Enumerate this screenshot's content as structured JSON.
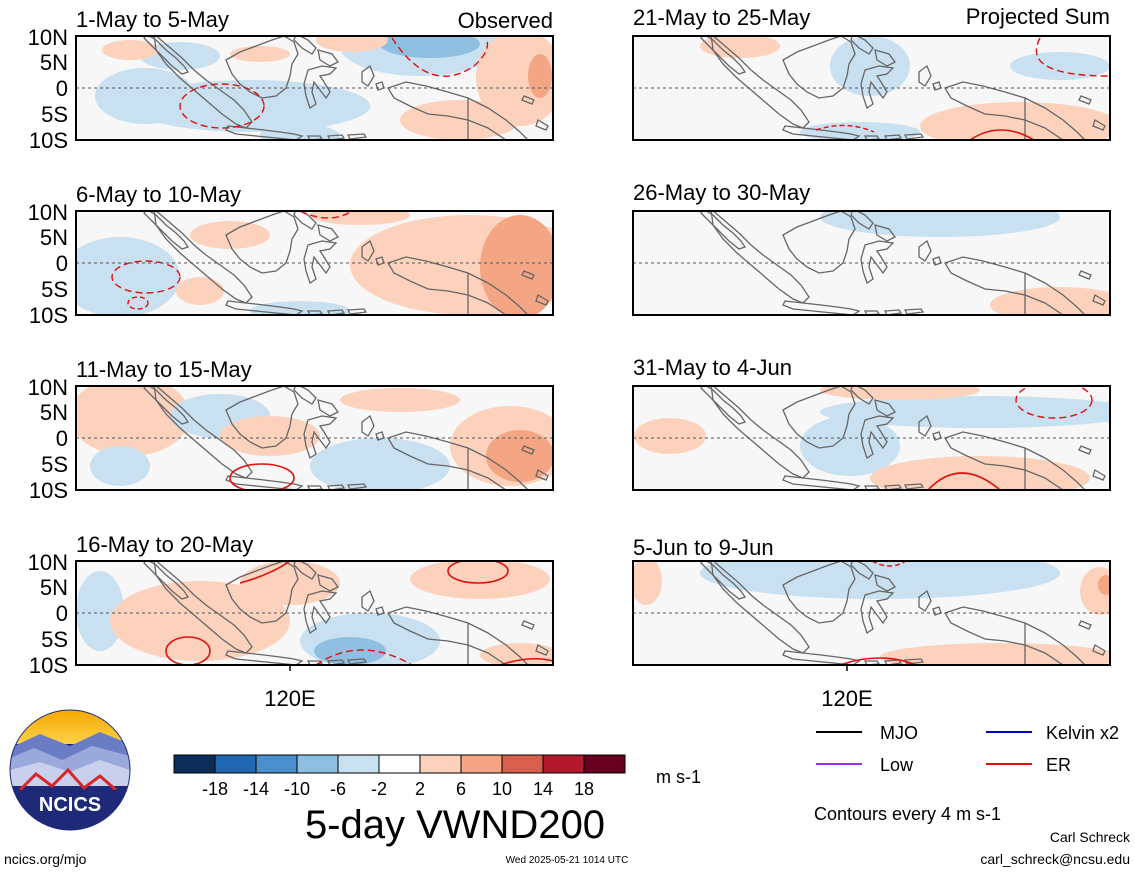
{
  "header": {
    "observed_label": "Observed",
    "projected_label": "Projected Sum"
  },
  "axes": {
    "lat_ticks": [
      "10N",
      "5N",
      "0",
      "5S",
      "10S"
    ],
    "lon_tick": "120E"
  },
  "panels": [
    {
      "title": "1-May to 5-May",
      "column": "observed"
    },
    {
      "title": "6-May to 10-May",
      "column": "observed"
    },
    {
      "title": "11-May to 15-May",
      "column": "observed"
    },
    {
      "title": "16-May to 20-May",
      "column": "observed"
    },
    {
      "title": "21-May to 25-May",
      "column": "projected"
    },
    {
      "title": "26-May to 30-May",
      "column": "projected"
    },
    {
      "title": "31-May to 4-Jun",
      "column": "projected"
    },
    {
      "title": "5-Jun to 9-Jun",
      "column": "projected"
    }
  ],
  "colorbar": {
    "labels": [
      "-18",
      "-14",
      "-10",
      "-6",
      "-2",
      "2",
      "6",
      "10",
      "14",
      "18"
    ],
    "colors": [
      "#0c2c58",
      "#2066b0",
      "#4a8ecb",
      "#8fbfe0",
      "#c8e0f0",
      "#ffffff",
      "#fcd2bc",
      "#f4a584",
      "#d6604d",
      "#b2182b",
      "#67001f"
    ],
    "unit": "m s-1"
  },
  "legend": {
    "items": [
      {
        "label": "MJO",
        "color": "#000000"
      },
      {
        "label": "Kelvin x2",
        "color": "#0000cc"
      },
      {
        "label": "Low",
        "color": "#9933ee"
      },
      {
        "label": "ER",
        "color": "#e01010"
      }
    ],
    "contour_note": "Contours every 4 m s-1"
  },
  "footer": {
    "title": "5-day VWND200",
    "site": "ncics.org/mjo",
    "timestamp": "Wed 2025-05-21 1014 UTC",
    "author": "Carl Schreck",
    "email": "carl_schreck@ncsu.edu",
    "logo_text": "NCICS"
  },
  "chart_data": {
    "type": "heatmap",
    "variable": "5-day VWND200",
    "unit": "m s-1",
    "lat_range": [
      -10,
      10
    ],
    "contour_interval": 4,
    "color_levels": [
      -18,
      -14,
      -10,
      -6,
      -2,
      2,
      6,
      10,
      14,
      18
    ],
    "panels": [
      "1-May to 5-May",
      "6-May to 10-May",
      "11-May to 15-May",
      "16-May to 20-May",
      "21-May to 25-May",
      "26-May to 30-May",
      "31-May to 4-Jun",
      "5-Jun to 9-Jun"
    ]
  }
}
